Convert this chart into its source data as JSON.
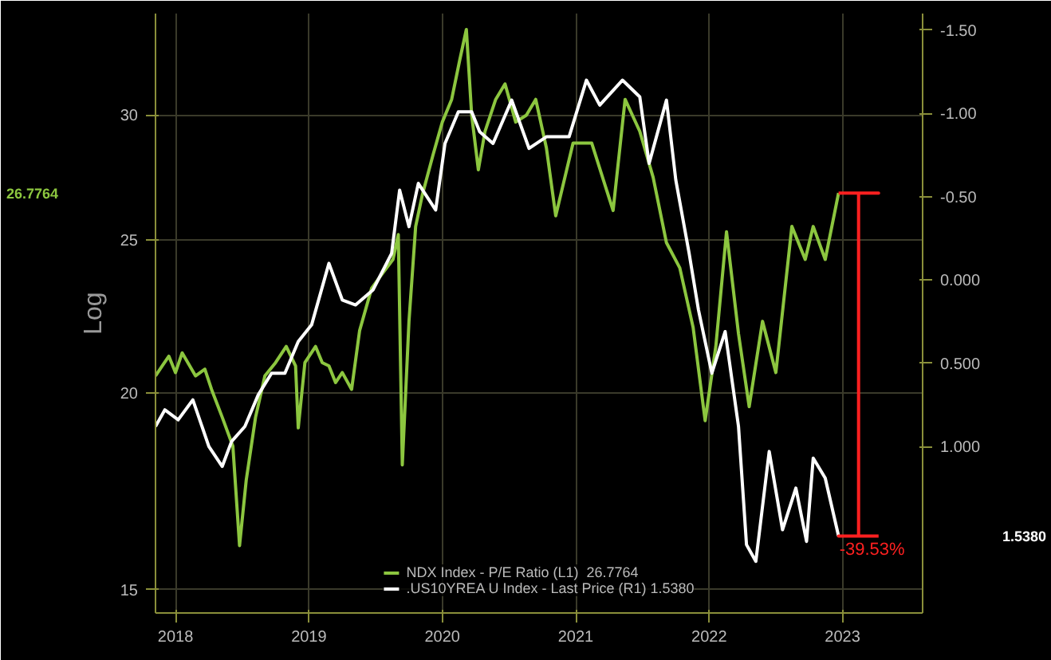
{
  "chart_data": {
    "type": "line",
    "ylabel": "Log",
    "log": "y",
    "grid": true,
    "legend": "bottom",
    "line_style": "solid",
    "marker": "none",
    "xlim": [
      2018.35,
      2024.1
    ],
    "xticks": [
      {
        "value": 2018.5,
        "label": "2018"
      },
      {
        "value": 2019.5,
        "label": "2019"
      },
      {
        "value": 2020.5,
        "label": "2020"
      },
      {
        "value": 2021.5,
        "label": "2021"
      },
      {
        "value": 2022.5,
        "label": "2022"
      },
      {
        "value": 2023.5,
        "label": "2023"
      }
    ],
    "ylim": [
      14.5,
      34.8
    ],
    "yticks": [
      15,
      20,
      25,
      30
    ],
    "y2lim": [
      2.0,
      -1.6
    ],
    "y2ticks": [
      {
        "value": -1.5,
        "label": "-1.50"
      },
      {
        "value": -1.0,
        "label": "-1.00"
      },
      {
        "value": -0.5,
        "label": "-0.50"
      },
      {
        "value": 0.0,
        "label": "0.000"
      },
      {
        "value": 0.5,
        "label": "0.500"
      },
      {
        "value": 1.0,
        "label": "1.000"
      }
    ],
    "annotations": [
      "26.7764",
      "1.5380",
      "-39.53%"
    ],
    "series": [
      {
        "name": "NDX Index - P/E Ratio (L1)  26.7764",
        "color": "#8cc63f",
        "x": [
          2018.35,
          2018.4,
          2018.45,
          2018.5,
          2018.55,
          2018.65,
          2018.72,
          2018.77,
          2018.85,
          2018.93,
          2018.98,
          2019.03,
          2019.1,
          2019.17,
          2019.25,
          2019.33,
          2019.4,
          2019.42,
          2019.47,
          2019.55,
          2019.6,
          2019.65,
          2019.7,
          2019.75,
          2019.82,
          2019.88,
          2019.97,
          2020.05,
          2020.13,
          2020.17,
          2020.2,
          2020.25,
          2020.3,
          2020.35,
          2020.43,
          2020.5,
          2020.57,
          2020.63,
          2020.68,
          2020.72,
          2020.77,
          2020.82,
          2020.9,
          2020.97,
          2021.05,
          2021.13,
          2021.2,
          2021.28,
          2021.35,
          2021.48,
          2021.62,
          2021.78,
          2021.87,
          2021.98,
          2022.08,
          2022.18,
          2022.28,
          2022.38,
          2022.47,
          2022.55,
          2022.63,
          2022.72,
          2022.8,
          2022.9,
          2023.0,
          2023.12,
          2023.22,
          2023.28,
          2023.37,
          2023.47
        ],
        "values": [
          20.5,
          20.8,
          21.1,
          20.6,
          21.2,
          20.5,
          20.7,
          20.1,
          19.3,
          18.5,
          16.0,
          17.6,
          19.3,
          20.5,
          20.9,
          21.4,
          20.8,
          19.0,
          20.9,
          21.4,
          20.9,
          20.8,
          20.3,
          20.6,
          20.1,
          21.9,
          23.3,
          23.8,
          24.3,
          25.2,
          18.0,
          22.2,
          25.5,
          26.7,
          28.3,
          29.7,
          30.7,
          32.5,
          34.0,
          30.0,
          27.7,
          29.3,
          30.7,
          31.4,
          29.7,
          30.0,
          30.7,
          28.6,
          25.9,
          28.8,
          28.8,
          26.1,
          30.7,
          29.3,
          27.4,
          24.9,
          24.0,
          22.0,
          19.2,
          21.4,
          25.3,
          21.8,
          19.6,
          22.2,
          20.6,
          25.5,
          24.3,
          25.5,
          24.3,
          26.7764
        ]
      },
      {
        "name": ".US10YREA U Index - Last Price (R1) 1.5380",
        "color": "#ffffff",
        "axis": "y2",
        "x": [
          2018.35,
          2018.42,
          2018.52,
          2018.63,
          2018.75,
          2018.85,
          2018.92,
          2019.02,
          2019.12,
          2019.22,
          2019.32,
          2019.42,
          2019.52,
          2019.65,
          2019.75,
          2019.85,
          2019.98,
          2020.12,
          2020.18,
          2020.25,
          2020.32,
          2020.45,
          2020.52,
          2020.62,
          2020.72,
          2020.78,
          2020.88,
          2021.02,
          2021.15,
          2021.28,
          2021.45,
          2021.58,
          2021.68,
          2021.85,
          2021.98,
          2022.05,
          2022.18,
          2022.25,
          2022.35,
          2022.42,
          2022.52,
          2022.62,
          2022.72,
          2022.78,
          2022.85,
          2022.95,
          2023.05,
          2023.15,
          2023.23,
          2023.28,
          2023.37,
          2023.47
        ],
        "values": [
          0.88,
          0.78,
          0.84,
          0.72,
          1.0,
          1.12,
          0.97,
          0.88,
          0.69,
          0.56,
          0.56,
          0.37,
          0.27,
          -0.1,
          0.12,
          0.15,
          0.06,
          -0.16,
          -0.54,
          -0.32,
          -0.58,
          -0.42,
          -0.82,
          -1.01,
          -1.01,
          -0.89,
          -0.82,
          -1.08,
          -0.79,
          -0.86,
          -0.86,
          -1.2,
          -1.05,
          -1.2,
          -1.1,
          -0.7,
          -1.08,
          -0.6,
          -0.16,
          0.18,
          0.56,
          0.31,
          0.88,
          1.59,
          1.69,
          1.03,
          1.5,
          1.25,
          1.57,
          1.07,
          1.19,
          1.538
        ]
      }
    ]
  }
}
